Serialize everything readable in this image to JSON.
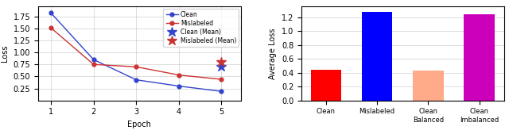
{
  "chart_data": [
    {
      "type": "line",
      "xlabel": "Epoch",
      "ylabel": "Loss",
      "x": [
        1,
        2,
        3,
        4,
        5
      ],
      "series": [
        {
          "name": "Clean",
          "color": "#3344cc",
          "marker": "circle",
          "values": [
            1.82,
            0.85,
            0.43,
            0.3,
            0.19
          ]
        },
        {
          "name": "Mislabeled",
          "color": "#cc3333",
          "marker": "circle",
          "values": [
            1.51,
            0.75,
            0.7,
            0.53,
            0.44
          ]
        },
        {
          "name": "Clean (Mean)",
          "type": "scatter",
          "color": "#3344cc",
          "marker": "star",
          "values": [
            null,
            null,
            null,
            null,
            0.71
          ]
        },
        {
          "name": "Mislabeled (Mean)",
          "type": "scatter",
          "color": "#cc3333",
          "marker": "star",
          "values": [
            null,
            null,
            null,
            null,
            0.8
          ]
        }
      ],
      "xlim": [
        0.7,
        5.45
      ],
      "xticks": [
        1,
        2,
        3,
        4,
        5
      ],
      "ylim": [
        0,
        1.95
      ],
      "yticks": [
        0.25,
        {
          "value": 0.5,
          "label": "0.50"
        },
        0.75,
        {
          "value": 1.0,
          "label": "1.00"
        },
        1.25,
        {
          "value": 1.5,
          "label": "1.50"
        },
        1.75
      ],
      "grid": true,
      "legend": "upper right"
    },
    {
      "type": "bar",
      "ylabel": "Average Loss",
      "categories": [
        "Clean",
        "Mislabeled",
        "Clean Balanced",
        "Clean Imbalanced"
      ],
      "values": [
        0.44,
        1.27,
        0.43,
        1.24
      ],
      "colors": [
        "#ff0000",
        "#0000ff",
        "#ffaa88",
        "#cc00bb"
      ],
      "ylim": [
        0,
        1.35
      ],
      "yticks": [
        {
          "value": 0.0,
          "label": "0.0"
        },
        0.2,
        0.4,
        0.6,
        0.8,
        {
          "value": 1.0,
          "label": "1.0"
        },
        1.2
      ],
      "grid": true
    }
  ]
}
